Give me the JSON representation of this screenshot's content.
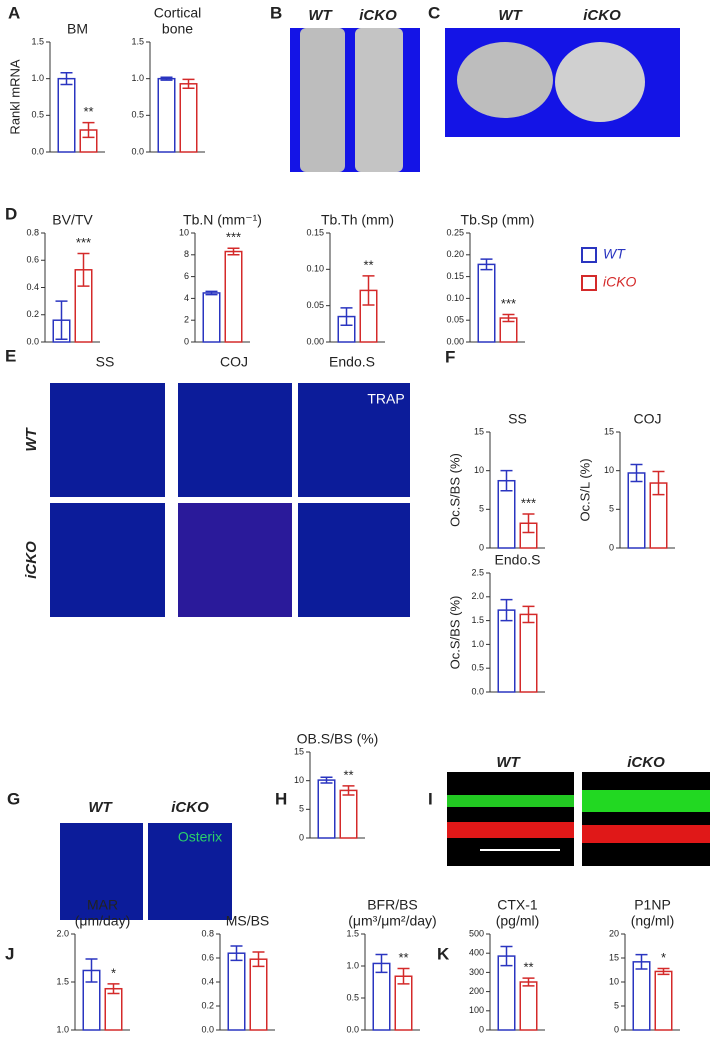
{
  "panel_letters": [
    "A",
    "B",
    "C",
    "D",
    "E",
    "F",
    "G",
    "H",
    "I",
    "J",
    "K"
  ],
  "labels": [
    "WT",
    "iCKO",
    "WT",
    "iCKO",
    "SS",
    "COJ",
    "Endo.S",
    "TRAP",
    "WT",
    "iCKO",
    "Osterix",
    "WT",
    "iCKO",
    "WT",
    "iCKO"
  ],
  "legend": [
    {
      "name": "WT",
      "color": "#2a35c0"
    },
    {
      "name": "iCKO",
      "color": "#d42a2a"
    }
  ],
  "chart_data": [
    {
      "type": "bar",
      "title": "BM",
      "ylabel": "Rankl mRNA",
      "values": [
        1.0,
        0.3
      ],
      "errors": [
        0.08,
        0.1
      ],
      "annotation": "**",
      "ylim": [
        0,
        1.5
      ],
      "yticks": [
        {
          "value": 0,
          "label": "0.0"
        },
        0.5,
        {
          "value": 1,
          "label": "1.0"
        },
        1.5
      ]
    },
    {
      "type": "bar",
      "title": [
        "Cortical",
        "bone"
      ],
      "values": [
        1.0,
        0.93
      ],
      "errors": [
        0.02,
        0.06
      ],
      "ylim": [
        0,
        1.5
      ],
      "yticks": [
        {
          "value": 0,
          "label": "0.0"
        },
        0.5,
        {
          "value": 1,
          "label": "1.0"
        },
        1.5
      ]
    },
    {
      "type": "bar",
      "title": "BV/TV",
      "values": [
        0.16,
        0.53
      ],
      "errors": [
        0.14,
        0.12
      ],
      "annotation": "***",
      "ylim": [
        0,
        0.8
      ],
      "yticks": [
        {
          "value": 0,
          "label": "0.0"
        },
        0.2,
        0.4,
        0.6,
        0.8
      ]
    },
    {
      "type": "bar",
      "title": "Tb.N (mm⁻¹)",
      "values": [
        4.5,
        8.3
      ],
      "errors": [
        0.15,
        0.3
      ],
      "annotation": "***",
      "ylim": [
        0,
        10
      ],
      "yticks": [
        0,
        2,
        4,
        6,
        8,
        10
      ]
    },
    {
      "type": "bar",
      "title": "Tb.Th (mm)",
      "values": [
        0.035,
        0.071
      ],
      "errors": [
        0.012,
        0.02
      ],
      "annotation": "**",
      "ylim": [
        0,
        0.15
      ],
      "yticks": [
        {
          "value": 0,
          "label": "0.00"
        },
        0.05,
        {
          "value": 0.1,
          "label": "0.10"
        },
        0.15
      ]
    },
    {
      "type": "bar",
      "title": "Tb.Sp (mm)",
      "values": [
        0.178,
        0.055
      ],
      "errors": [
        0.012,
        0.008
      ],
      "annotation": "***",
      "ylim": [
        0,
        0.25
      ],
      "yticks": [
        {
          "value": 0,
          "label": "0.00"
        },
        0.05,
        {
          "value": 0.1,
          "label": "0.10"
        },
        0.15,
        {
          "value": 0.2,
          "label": "0.20"
        },
        0.25
      ]
    },
    {
      "type": "bar",
      "title": "SS",
      "ylabel": "Oc.S/BS (%)",
      "values": [
        8.7,
        3.2
      ],
      "errors": [
        1.3,
        1.2
      ],
      "annotation": "***",
      "ylim": [
        0,
        15
      ],
      "yticks": [
        0,
        5,
        10,
        15
      ]
    },
    {
      "type": "bar",
      "title": "COJ",
      "ylabel": "Oc.S/L (%)",
      "values": [
        9.7,
        8.4
      ],
      "errors": [
        1.1,
        1.5
      ],
      "ylim": [
        0,
        15
      ],
      "yticks": [
        0,
        5,
        10,
        15
      ]
    },
    {
      "type": "bar",
      "title": "Endo.S",
      "ylabel": "Oc.S/BS (%)",
      "values": [
        1.72,
        1.63
      ],
      "errors": [
        0.22,
        0.17
      ],
      "ylim": [
        0,
        2.5
      ],
      "yticks": [
        {
          "value": 0,
          "label": "0.0"
        },
        0.5,
        {
          "value": 1,
          "label": "1.0"
        },
        1.5,
        {
          "value": 2,
          "label": "2.0"
        },
        2.5
      ]
    },
    {
      "type": "bar",
      "title": "OB.S/BS (%)",
      "values": [
        10.1,
        8.3
      ],
      "errors": [
        0.5,
        0.8
      ],
      "annotation": "**",
      "ylim": [
        0,
        15
      ],
      "yticks": [
        0,
        5,
        10,
        15
      ]
    },
    {
      "type": "bar",
      "title": [
        "MAR",
        "(μm/day)"
      ],
      "values": [
        1.62,
        1.43
      ],
      "errors": [
        0.12,
        0.05
      ],
      "annotation": "*",
      "ylim": [
        1,
        2
      ],
      "yticks": [
        {
          "value": 1,
          "label": "1.0"
        },
        1.5,
        {
          "value": 2,
          "label": "2.0"
        }
      ]
    },
    {
      "type": "bar",
      "title": "MS/BS",
      "values": [
        0.64,
        0.59
      ],
      "errors": [
        0.06,
        0.06
      ],
      "ylim": [
        0,
        0.8
      ],
      "yticks": [
        {
          "value": 0,
          "label": "0.0"
        },
        0.2,
        0.4,
        0.6,
        0.8
      ]
    },
    {
      "type": "bar",
      "title": [
        "BFR/BS",
        "(μm³/μm²/day)"
      ],
      "values": [
        1.04,
        0.84
      ],
      "errors": [
        0.14,
        0.12
      ],
      "annotation": "**",
      "ylim": [
        0,
        1.5
      ],
      "yticks": [
        {
          "value": 0,
          "label": "0.0"
        },
        0.5,
        {
          "value": 1,
          "label": "1.0"
        },
        1.5
      ]
    },
    {
      "type": "bar",
      "title": [
        "CTX-1",
        "(pg/ml)"
      ],
      "values": [
        385,
        250
      ],
      "errors": [
        50,
        20
      ],
      "annotation": "**",
      "ylim": [
        0,
        500
      ],
      "yticks": [
        0,
        100,
        200,
        300,
        400,
        500
      ]
    },
    {
      "type": "bar",
      "title": [
        "P1NP",
        "(ng/ml)"
      ],
      "values": [
        14.2,
        12.2
      ],
      "errors": [
        1.5,
        0.6
      ],
      "annotation": "*",
      "ylim": [
        0,
        20
      ],
      "yticks": [
        0,
        5,
        10,
        15,
        20
      ]
    }
  ]
}
